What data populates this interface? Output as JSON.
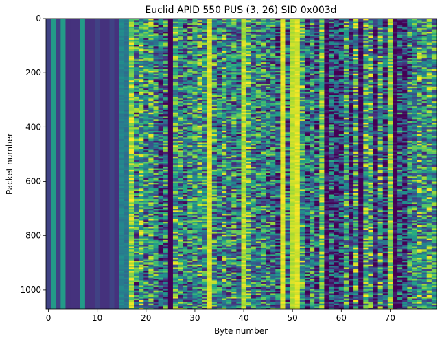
{
  "chart_data": {
    "type": "heatmap",
    "title": "Euclid APID 550 PUS (3, 26) SID 0x003d",
    "xlabel": "Byte number",
    "ylabel": "Packet number",
    "xlim": [
      -0.5,
      79.5
    ],
    "ylim": [
      1071,
      0
    ],
    "n_bytes": 80,
    "n_packets": 1071,
    "colormap": "viridis",
    "x_ticks": [
      0,
      10,
      20,
      30,
      40,
      50,
      60,
      70
    ],
    "x_tick_labels": [
      "0",
      "10",
      "20",
      "30",
      "40",
      "50",
      "60",
      "70"
    ],
    "y_ticks": [
      0,
      200,
      400,
      600,
      800,
      1000
    ],
    "y_tick_labels": [
      "0",
      "200",
      "400",
      "600",
      "800",
      "1000"
    ],
    "grid": false,
    "legend": "none",
    "column_kind": [
      "c",
      "c",
      "c",
      "c",
      "c",
      "c",
      "c",
      "c",
      "c",
      "c",
      "c",
      "c",
      "c",
      "c",
      "c",
      "t",
      "t",
      "v",
      "v",
      "v",
      "v",
      "v",
      "v",
      "v",
      "v",
      "c",
      "v",
      "v",
      "v",
      "v",
      "v",
      "v",
      "v",
      "v",
      "v",
      "v",
      "v",
      "v",
      "v",
      "v",
      "v",
      "v",
      "v",
      "v",
      "v",
      "v",
      "v",
      "v",
      "v",
      "v",
      "t",
      "t",
      "v",
      "v",
      "v",
      "v",
      "v",
      "v",
      "v",
      "v",
      "v",
      "v",
      "v",
      "v",
      "v",
      "v",
      "v",
      "v",
      "v",
      "v",
      "v",
      "v",
      "v",
      "v",
      "v",
      "v",
      "v",
      "v",
      "v",
      "v"
    ],
    "column_base_value": [
      0.2,
      0.55,
      0.2,
      0.55,
      0.15,
      0.15,
      0.15,
      0.55,
      0.15,
      0.15,
      0.2,
      0.15,
      0.15,
      0.2,
      0.15,
      0.45,
      0.4,
      0.85,
      0.45,
      0.7,
      0.45,
      0.6,
      0.45,
      0.3,
      0.45,
      0.0,
      0.6,
      0.5,
      0.4,
      0.45,
      0.5,
      0.55,
      0.5,
      0.95,
      0.5,
      0.4,
      0.55,
      0.45,
      0.5,
      0.4,
      0.9,
      0.6,
      0.45,
      0.45,
      0.5,
      0.4,
      0.45,
      0.3,
      0.95,
      0.4,
      0.9,
      0.95,
      0.6,
      0.3,
      0.5,
      0.3,
      0.75,
      0.0,
      0.3,
      0.15,
      0.2,
      0.55,
      0.1,
      0.6,
      0.0,
      0.6,
      0.6,
      0.1,
      0.55,
      0.2,
      0.8,
      0.0,
      0.3,
      0.15,
      0.45,
      0.5,
      0.55,
      0.5,
      0.6,
      0.55
    ],
    "column_variation": [
      0,
      0,
      0,
      0,
      0,
      0,
      0,
      0,
      0,
      0,
      0,
      0,
      0,
      0,
      0,
      0.05,
      0.05,
      0.2,
      0.45,
      0.4,
      0.45,
      0.4,
      0.45,
      0.4,
      0.45,
      0,
      0.4,
      0.45,
      0.4,
      0.45,
      0.4,
      0.45,
      0.4,
      0.05,
      0.45,
      0.4,
      0.45,
      0.4,
      0.45,
      0.4,
      0.1,
      0.45,
      0.4,
      0.45,
      0.4,
      0.45,
      0.4,
      0.45,
      0.05,
      0.4,
      0.05,
      0.05,
      0.4,
      0.45,
      0.4,
      0.45,
      0.25,
      0.2,
      0.45,
      0.4,
      0.45,
      0.4,
      0.35,
      0.45,
      0.2,
      0.4,
      0.45,
      0.3,
      0.45,
      0.4,
      0.2,
      0.15,
      0.45,
      0.4,
      0.45,
      0.4,
      0.45,
      0.4,
      0.45,
      0.4
    ]
  }
}
